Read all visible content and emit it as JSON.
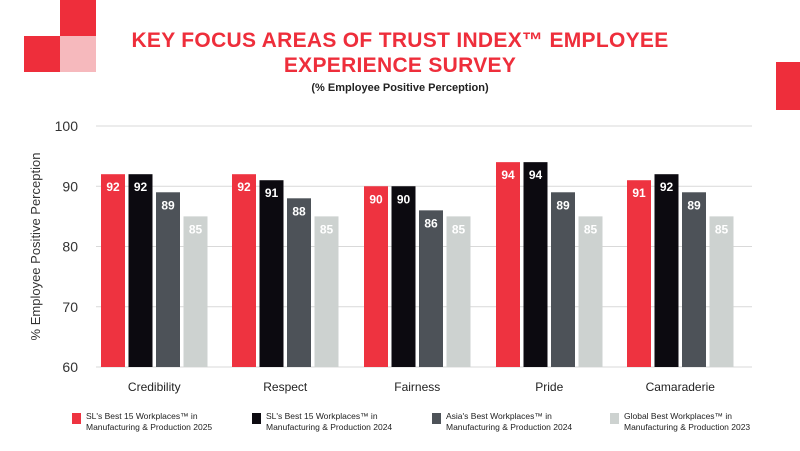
{
  "title_lines": [
    "KEY FOCUS AREAS OF TRUST INDEX™ EMPLOYEE",
    "EXPERIENCE SURVEY"
  ],
  "subtitle": "(% Employee Positive Perception)",
  "colors": {
    "accent": "#ee2e3b",
    "accent_light": "#f6b9bd"
  },
  "chart_data": {
    "type": "bar",
    "title": "KEY FOCUS AREAS OF TRUST INDEX™ EMPLOYEE EXPERIENCE SURVEY",
    "subtitle": "(% Employee Positive Perception)",
    "ylabel": "% Employee Positive Perception",
    "xlabel": "",
    "ylim": [
      60,
      100
    ],
    "yticks": [
      60,
      70,
      80,
      90,
      100
    ],
    "grid": true,
    "legend_position": "bottom",
    "categories": [
      "Credibility",
      "Respect",
      "Fairness",
      "Pride",
      "Camaraderie"
    ],
    "series": [
      {
        "name": "SL's Best 15 Workplaces™ in\nManufacturing & Production 2025",
        "color": "#ee3340",
        "label_color": "#ffffff",
        "values": [
          92,
          92,
          90,
          94,
          91
        ]
      },
      {
        "name": "SL's Best 15 Workplaces™ in\nManufacturing & Production 2024",
        "color": "#0c0a10",
        "label_color": "#ffffff",
        "values": [
          92,
          91,
          90,
          94,
          92
        ]
      },
      {
        "name": "Asia's Best Workplaces™ in\nManufacturing & Production 2024",
        "color": "#4d5258",
        "label_color": "#ffffff",
        "values": [
          89,
          88,
          86,
          89,
          89
        ]
      },
      {
        "name": "Global Best Workplaces™ in\nManufacturing & Production 2023",
        "color": "#cdd2d0",
        "label_color": "#ffffff",
        "values": [
          85,
          85,
          85,
          85,
          85
        ]
      }
    ]
  }
}
